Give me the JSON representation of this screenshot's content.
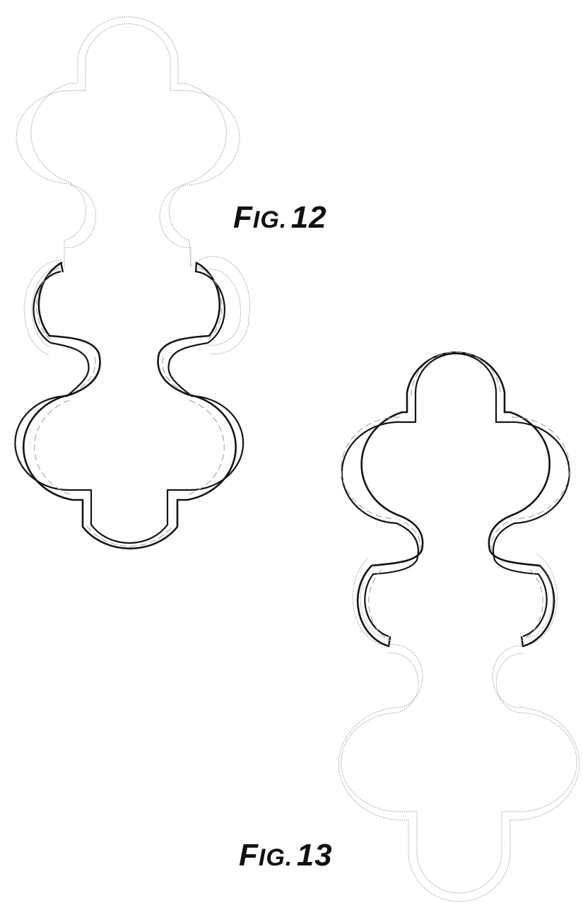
{
  "figures": {
    "fig12": {
      "prefix": "F",
      "suffix": "IG.",
      "number": "12"
    },
    "fig13": {
      "prefix": "F",
      "suffix": "IG.",
      "number": "13"
    }
  },
  "colors": {
    "ink": "#141414",
    "ghost_line": "#8a8a8a",
    "shading": "#9a9a9a",
    "background": "#ffffff"
  }
}
